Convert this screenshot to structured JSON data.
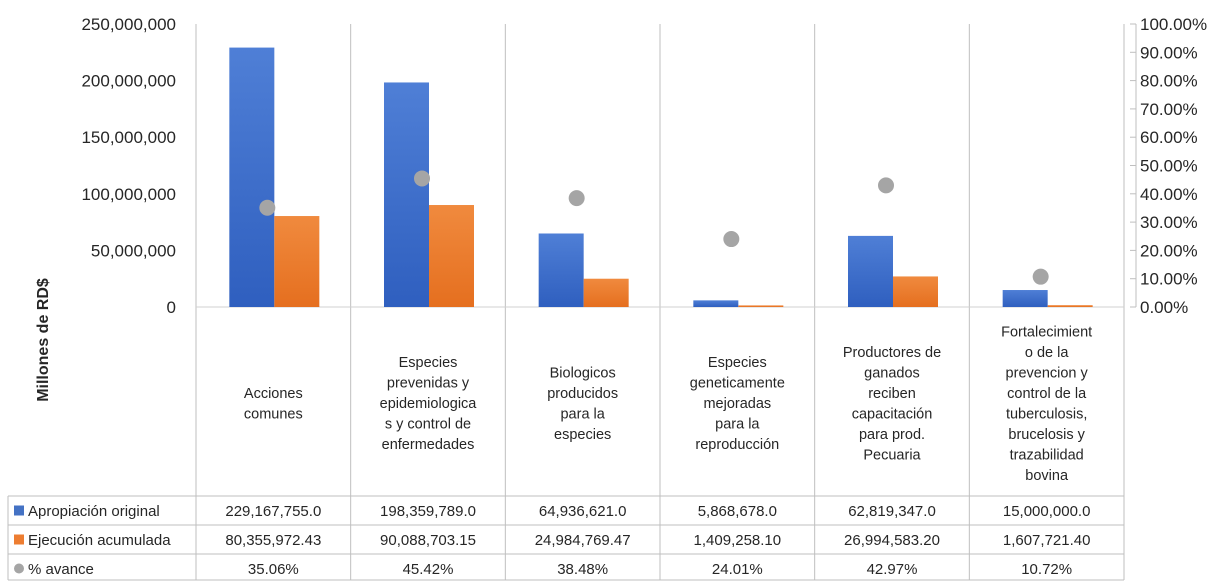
{
  "chart_data": {
    "type": "bar",
    "ylabel": "Millones de RD$",
    "y_ticks": [
      "250,000,000",
      "200,000,000",
      "150,000,000",
      "100,000,000",
      "50,000,000",
      "0"
    ],
    "y_right_ticks": [
      "100.00%",
      "90.00%",
      "80.00%",
      "70.00%",
      "60.00%",
      "50.00%",
      "40.00%",
      "30.00%",
      "20.00%",
      "10.00%",
      "0.00%"
    ],
    "ylim": [
      0,
      250000000
    ],
    "y2lim": [
      0,
      100
    ],
    "grid": "vertical category separators",
    "legend": "table",
    "categories": [
      [
        "Acciones",
        "comunes"
      ],
      [
        "Especies",
        "prevenidas y",
        "epidemiologica",
        "s y control de",
        "enfermedades"
      ],
      [
        "Biologicos",
        "producidos",
        "para la",
        "especies"
      ],
      [
        "Especies",
        "geneticamente",
        "mejoradas",
        "para la",
        "reproducción"
      ],
      [
        "Productores de",
        "ganados",
        "reciben",
        "capacitación",
        "para prod.",
        "Pecuaria"
      ],
      [
        "Fortalecimient",
        "o de la",
        "prevencion y",
        "control de la",
        "tuberculosis,",
        "brucelosis y",
        "trazabilidad",
        "bovina"
      ]
    ],
    "series": [
      {
        "name": "Apropiación  original",
        "color": "#4472c4",
        "values": [
          229167755.0,
          198359789.0,
          64936621.0,
          5868678.0,
          62819347.0,
          15000000.0
        ],
        "labels": [
          "229,167,755.0",
          "198,359,789.0",
          "64,936,621.0",
          "5,868,678.0",
          "62,819,347.0",
          "15,000,000.0"
        ]
      },
      {
        "name": "Ejecución acumulada",
        "color": "#ed7d31",
        "values": [
          80355972.43,
          90088703.15,
          24984769.47,
          1409258.1,
          26994583.2,
          1607721.4
        ],
        "labels": [
          "80,355,972.43",
          "90,088,703.15",
          "24,984,769.47",
          "1,409,258.10",
          "26,994,583.20",
          "1,607,721.40"
        ]
      },
      {
        "name": "% avance",
        "color": "#a5a5a5",
        "axis": "secondary",
        "values": [
          35.06,
          45.42,
          38.48,
          24.01,
          42.97,
          10.72
        ],
        "labels": [
          "35.06%",
          "45.42%",
          "38.48%",
          "24.01%",
          "42.97%",
          "10.72%"
        ]
      }
    ]
  }
}
